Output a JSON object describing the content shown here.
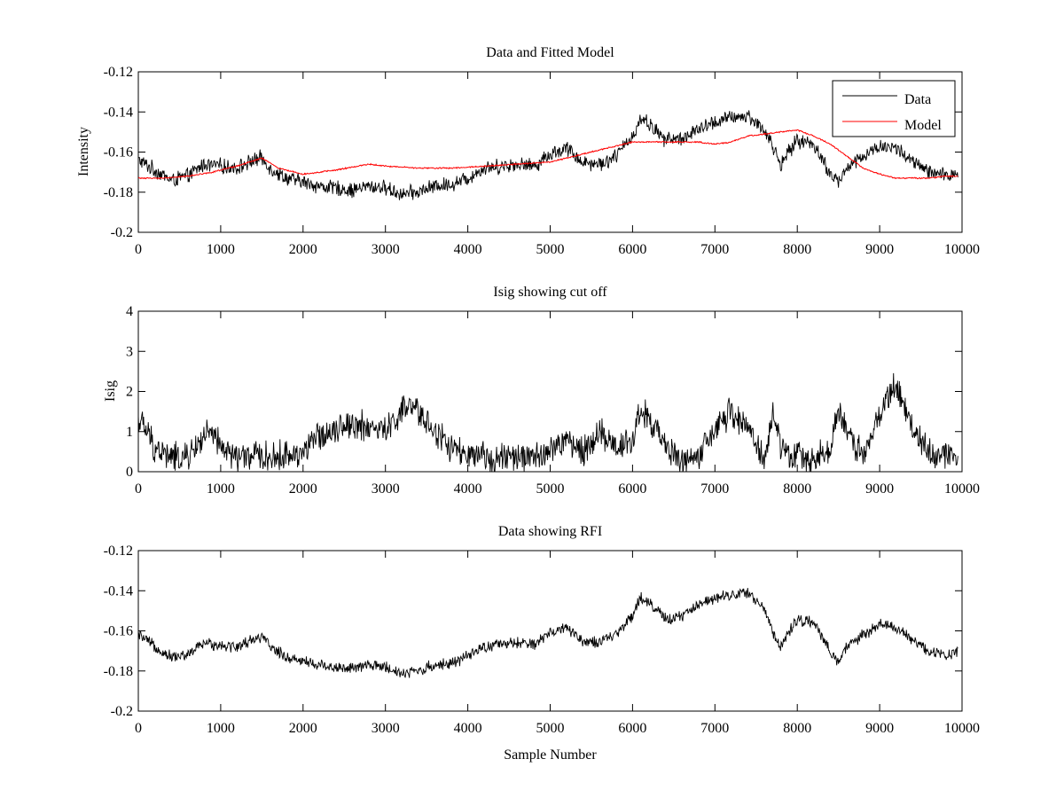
{
  "figure": {
    "background": "#ffffff"
  },
  "chart_data": [
    {
      "type": "line",
      "title": "Data and Fitted Model",
      "xlabel": "",
      "ylabel": "Intensity",
      "xlim": [
        0,
        10000
      ],
      "ylim": [
        -0.2,
        -0.12
      ],
      "xticks": [
        0,
        1000,
        2000,
        3000,
        4000,
        5000,
        6000,
        7000,
        8000,
        9000,
        10000
      ],
      "xtick_labels": [
        "0",
        "1000",
        "2000",
        "3000",
        "4000",
        "5000",
        "6000",
        "7000",
        "8000",
        "9000",
        "10000"
      ],
      "yticks": [
        -0.2,
        -0.18,
        -0.16,
        -0.14,
        -0.12
      ],
      "ytick_labels": [
        "-0.2",
        "-0.18",
        "-0.16",
        "-0.14",
        "-0.12"
      ],
      "legend": {
        "position": "top-right",
        "entries": [
          "Data",
          "Model"
        ]
      },
      "series": [
        {
          "name": "Data",
          "color": "#000000",
          "noise": 0.0045,
          "x": [
            0,
            200,
            400,
            600,
            800,
            1000,
            1200,
            1400,
            1500,
            1600,
            1800,
            2000,
            2200,
            2400,
            2600,
            2800,
            3000,
            3200,
            3400,
            3600,
            3800,
            4000,
            4200,
            4400,
            4600,
            4800,
            5000,
            5200,
            5400,
            5600,
            5800,
            6000,
            6100,
            6200,
            6400,
            6600,
            6800,
            7000,
            7200,
            7400,
            7600,
            7700,
            7800,
            8000,
            8200,
            8400,
            8500,
            8600,
            8800,
            9000,
            9200,
            9400,
            9600,
            9800,
            9950
          ],
          "y": [
            -0.164,
            -0.169,
            -0.174,
            -0.172,
            -0.166,
            -0.167,
            -0.168,
            -0.164,
            -0.163,
            -0.168,
            -0.173,
            -0.175,
            -0.177,
            -0.178,
            -0.179,
            -0.177,
            -0.178,
            -0.181,
            -0.18,
            -0.177,
            -0.176,
            -0.173,
            -0.168,
            -0.167,
            -0.166,
            -0.167,
            -0.161,
            -0.158,
            -0.165,
            -0.166,
            -0.162,
            -0.152,
            -0.143,
            -0.146,
            -0.154,
            -0.153,
            -0.149,
            -0.145,
            -0.143,
            -0.142,
            -0.149,
            -0.157,
            -0.166,
            -0.154,
            -0.156,
            -0.171,
            -0.175,
            -0.168,
            -0.162,
            -0.157,
            -0.158,
            -0.165,
            -0.17,
            -0.172,
            -0.17
          ]
        },
        {
          "name": "Model",
          "color": "#ff0000",
          "noise": 0.0004,
          "x": [
            0,
            300,
            600,
            900,
            1200,
            1500,
            1700,
            2000,
            2400,
            2800,
            3000,
            3400,
            3800,
            4200,
            4600,
            5000,
            5400,
            5800,
            6000,
            6400,
            6800,
            7000,
            7200,
            7400,
            7600,
            7800,
            8000,
            8200,
            8400,
            8600,
            8800,
            9000,
            9200,
            9400,
            9600,
            9800,
            9950
          ],
          "y": [
            -0.173,
            -0.173,
            -0.172,
            -0.17,
            -0.167,
            -0.163,
            -0.168,
            -0.171,
            -0.169,
            -0.166,
            -0.167,
            -0.168,
            -0.168,
            -0.167,
            -0.166,
            -0.165,
            -0.161,
            -0.157,
            -0.155,
            -0.155,
            -0.155,
            -0.156,
            -0.155,
            -0.152,
            -0.151,
            -0.15,
            -0.149,
            -0.152,
            -0.156,
            -0.162,
            -0.168,
            -0.171,
            -0.173,
            -0.173,
            -0.173,
            -0.172,
            -0.172
          ]
        }
      ]
    },
    {
      "type": "line",
      "title": "Isig showing cut off",
      "xlabel": "",
      "ylabel": "Isig",
      "xlim": [
        0,
        10000
      ],
      "ylim": [
        0,
        4
      ],
      "xticks": [
        0,
        1000,
        2000,
        3000,
        4000,
        5000,
        6000,
        7000,
        8000,
        9000,
        10000
      ],
      "xtick_labels": [
        "0",
        "1000",
        "2000",
        "3000",
        "4000",
        "5000",
        "6000",
        "7000",
        "8000",
        "9000",
        "10000"
      ],
      "yticks": [
        0,
        1,
        2,
        3,
        4
      ],
      "ytick_labels": [
        "0",
        "1",
        "2",
        "3",
        "4"
      ],
      "series": [
        {
          "name": "Isig",
          "color": "#000000",
          "noise": 0.45,
          "clip_min": 0,
          "x": [
            0,
            100,
            200,
            400,
            600,
            800,
            900,
            1000,
            1200,
            1400,
            1600,
            1800,
            2000,
            2200,
            2400,
            2600,
            2800,
            3000,
            3200,
            3300,
            3400,
            3600,
            3800,
            4000,
            4200,
            4400,
            4600,
            4800,
            5000,
            5200,
            5400,
            5600,
            5800,
            6000,
            6100,
            6200,
            6400,
            6600,
            6800,
            7000,
            7200,
            7400,
            7600,
            7700,
            7800,
            8000,
            8200,
            8400,
            8500,
            8600,
            8800,
            9000,
            9100,
            9200,
            9400,
            9600,
            9800,
            9950
          ],
          "y": [
            1.3,
            1.0,
            0.6,
            0.35,
            0.35,
            0.9,
            0.9,
            0.6,
            0.35,
            0.4,
            0.35,
            0.4,
            0.5,
            0.9,
            1.1,
            1.2,
            1.1,
            1.0,
            1.5,
            1.6,
            1.5,
            1.0,
            0.6,
            0.35,
            0.35,
            0.35,
            0.35,
            0.35,
            0.5,
            0.8,
            0.5,
            1.0,
            0.6,
            0.8,
            1.6,
            1.3,
            0.6,
            0.3,
            0.35,
            1.0,
            1.5,
            1.1,
            0.3,
            1.4,
            0.6,
            0.35,
            0.35,
            0.6,
            1.5,
            1.0,
            0.4,
            1.4,
            1.9,
            2.1,
            1.1,
            0.5,
            0.4,
            0.4
          ]
        }
      ]
    },
    {
      "type": "line",
      "title": "Data showing RFI",
      "xlabel": "Sample Number",
      "ylabel": "",
      "xlim": [
        0,
        10000
      ],
      "ylim": [
        -0.2,
        -0.12
      ],
      "xticks": [
        0,
        1000,
        2000,
        3000,
        4000,
        5000,
        6000,
        7000,
        8000,
        9000,
        10000
      ],
      "xtick_labels": [
        "0",
        "1000",
        "2000",
        "3000",
        "4000",
        "5000",
        "6000",
        "7000",
        "8000",
        "9000",
        "10000"
      ],
      "yticks": [
        -0.2,
        -0.18,
        -0.16,
        -0.14,
        -0.12
      ],
      "ytick_labels": [
        "-0.2",
        "-0.18",
        "-0.16",
        "-0.14",
        "-0.12"
      ],
      "series": [
        {
          "name": "Data",
          "color": "#000000",
          "noise": 0.0035,
          "x": [
            0,
            200,
            400,
            600,
            800,
            1000,
            1200,
            1400,
            1500,
            1600,
            1800,
            2000,
            2200,
            2400,
            2600,
            2800,
            3000,
            3200,
            3400,
            3600,
            3800,
            4000,
            4200,
            4400,
            4600,
            4800,
            5000,
            5200,
            5400,
            5600,
            5800,
            6000,
            6100,
            6200,
            6400,
            6600,
            6800,
            7000,
            7200,
            7400,
            7600,
            7700,
            7800,
            8000,
            8200,
            8400,
            8500,
            8600,
            8800,
            9000,
            9200,
            9400,
            9600,
            9800,
            9950
          ],
          "y": [
            -0.162,
            -0.168,
            -0.173,
            -0.172,
            -0.166,
            -0.167,
            -0.168,
            -0.164,
            -0.163,
            -0.168,
            -0.173,
            -0.175,
            -0.177,
            -0.178,
            -0.179,
            -0.177,
            -0.178,
            -0.181,
            -0.18,
            -0.177,
            -0.176,
            -0.173,
            -0.168,
            -0.167,
            -0.166,
            -0.167,
            -0.161,
            -0.158,
            -0.165,
            -0.166,
            -0.162,
            -0.152,
            -0.143,
            -0.146,
            -0.154,
            -0.153,
            -0.147,
            -0.143,
            -0.142,
            -0.141,
            -0.149,
            -0.16,
            -0.168,
            -0.154,
            -0.156,
            -0.171,
            -0.175,
            -0.168,
            -0.162,
            -0.157,
            -0.158,
            -0.165,
            -0.17,
            -0.172,
            -0.17
          ]
        }
      ]
    }
  ]
}
